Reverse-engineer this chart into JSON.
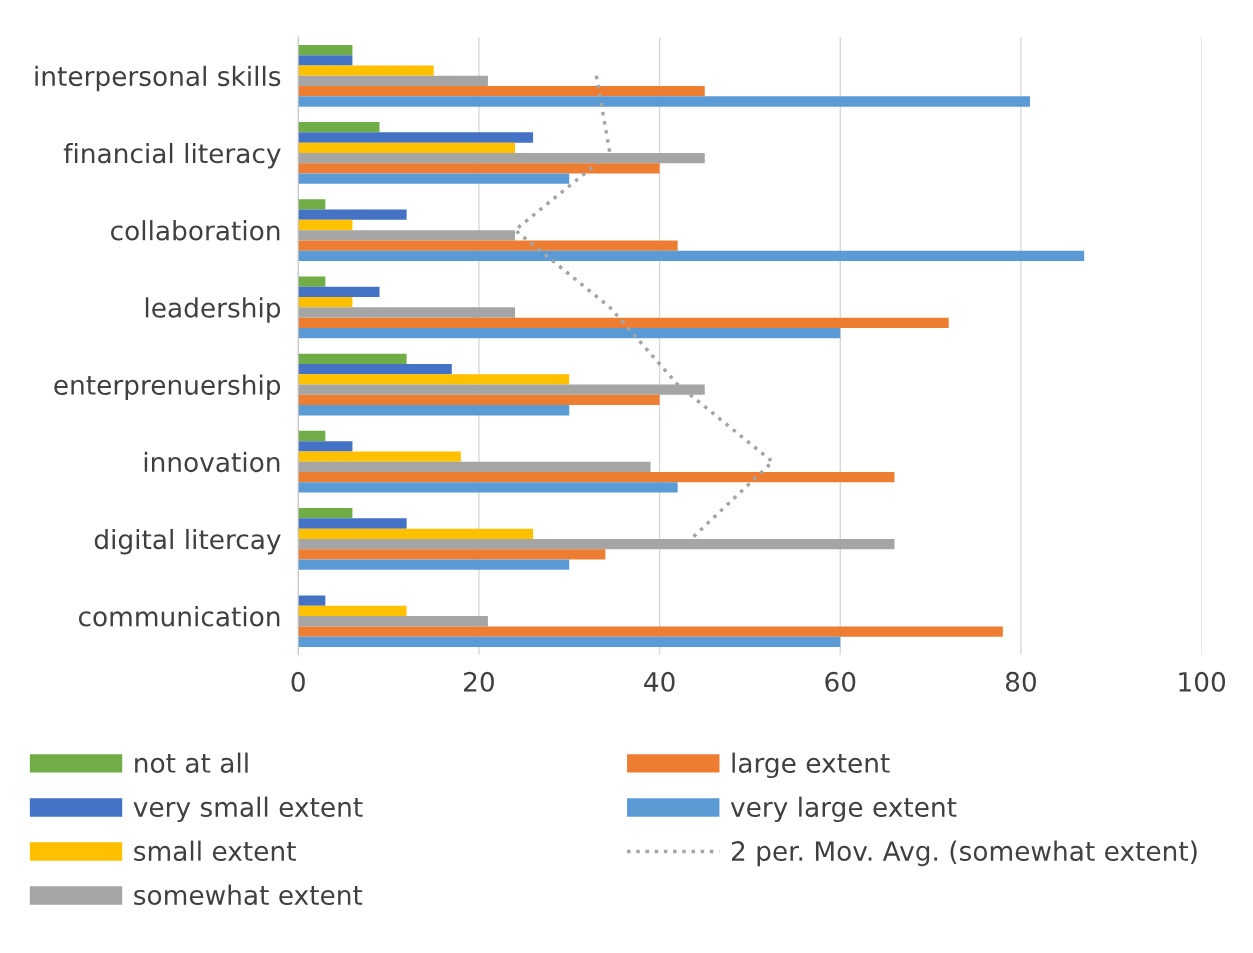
{
  "chart_data": {
    "type": "bar",
    "orientation": "horizontal",
    "categories": [
      "interpersonal skills",
      "financial literacy",
      "collaboration",
      "leadership",
      "enterprenuership",
      "innovation",
      "digital litercay",
      "communication"
    ],
    "series": [
      {
        "name": "not at all",
        "color": "#70ad47",
        "values": [
          6,
          9,
          3,
          3,
          12,
          3,
          6,
          0
        ]
      },
      {
        "name": "very small extent",
        "color": "#4472c4",
        "values": [
          6,
          26,
          12,
          9,
          17,
          6,
          12,
          3
        ]
      },
      {
        "name": "small extent",
        "color": "#ffc000",
        "values": [
          15,
          24,
          6,
          6,
          30,
          18,
          26,
          12
        ]
      },
      {
        "name": "somewhat extent",
        "color": "#a5a5a5",
        "values": [
          21,
          45,
          24,
          24,
          45,
          39,
          66,
          21
        ]
      },
      {
        "name": "large extent",
        "color": "#ed7d31",
        "values": [
          45,
          40,
          42,
          72,
          40,
          66,
          34,
          78
        ]
      },
      {
        "name": "very large extent",
        "color": "#5b9bd5",
        "values": [
          81,
          30,
          87,
          60,
          30,
          42,
          30,
          60
        ]
      },
      {
        "name": "2 per. Mov. Avg. (somewhat extent)",
        "type": "line",
        "color": "#a5a5a5",
        "line_style": "dotted",
        "values": [
          33,
          34.5,
          24,
          34.5,
          42,
          52.5,
          43.5,
          null
        ]
      }
    ],
    "xlim": [
      0,
      100
    ],
    "xticks": [
      0,
      20,
      40,
      60,
      80,
      100
    ],
    "grid": "x",
    "legend": "bottom"
  }
}
